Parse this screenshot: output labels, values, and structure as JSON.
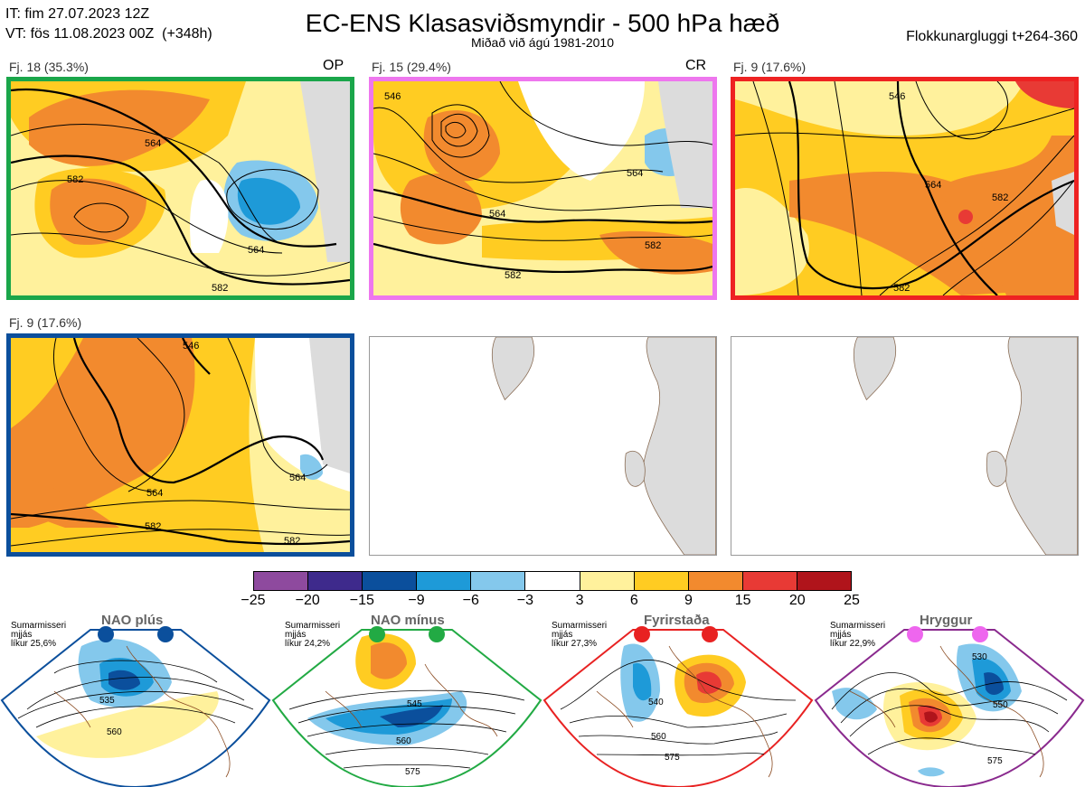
{
  "header": {
    "it_line": "IT: fim 27.07.2023 12Z",
    "vt_line": "VT: fös 11.08.2023 00Z  (+348h)",
    "title": "EC-ENS Klasasviðsmyndir - 500 hPa hæð",
    "subtitle": "Miðað við ágú 1981-2010",
    "window": "Flokkunargluggi t+264-360"
  },
  "panels": [
    {
      "label": "Fj. 18 (35.3%)",
      "code": "OP",
      "border_color": "#1aa64a",
      "contours": [
        "564",
        "582",
        "564",
        "582"
      ]
    },
    {
      "label": "Fj. 15 (29.4%)",
      "code": "CR",
      "border_color": "#ee77ee",
      "contours": [
        "546",
        "564",
        "564",
        "582",
        "582"
      ]
    },
    {
      "label": "Fj. 9 (17.6%)",
      "code": "",
      "border_color": "#ee2222",
      "contours": [
        "546",
        "564",
        "582",
        "582"
      ]
    },
    {
      "label": "Fj. 9 (17.6%)",
      "code": "",
      "border_color": "#0b4f9c",
      "contours": [
        "546",
        "564",
        "564",
        "582",
        "582"
      ]
    }
  ],
  "colorbar": {
    "ticks": [
      "−25",
      "−20",
      "−15",
      "−9",
      "−6",
      "−3",
      "3",
      "6",
      "9",
      "15",
      "20",
      "25"
    ],
    "colors": [
      "#8e4a9e",
      "#3e2a8c",
      "#0b4f9c",
      "#1e9ad8",
      "#84c8ec",
      "#ffffff",
      "#fff19c",
      "#ffcc22",
      "#f28a2e",
      "#e83a35",
      "#b0141b"
    ]
  },
  "regimes": [
    {
      "title": "NAO plús",
      "note": "Sumarmisseri\nmjjás\nlíkur 25,6%",
      "dot_color": "#0b4f9c",
      "frame_color": "#0b4f9c",
      "contours": [
        "535",
        "560"
      ]
    },
    {
      "title": "NAO mínus",
      "note": "Sumarmisseri\nmjjás\nlíkur 24,2%",
      "dot_color": "#22aa44",
      "frame_color": "#22aa44",
      "contours": [
        "545",
        "560",
        "575"
      ]
    },
    {
      "title": "Fyrirstaða",
      "note": "Sumarmisseri\nmjjás\nlíkur 27,3%",
      "dot_color": "#e82222",
      "frame_color": "#e82222",
      "contours": [
        "540",
        "560",
        "575"
      ]
    },
    {
      "title": "Hryggur",
      "note": "Sumarmisseri\nmjjás\nlíkur 22,9%",
      "dot_color": "#ee66ee",
      "frame_color": "#8a2a8e",
      "contours": [
        "530",
        "550",
        "575"
      ]
    }
  ]
}
